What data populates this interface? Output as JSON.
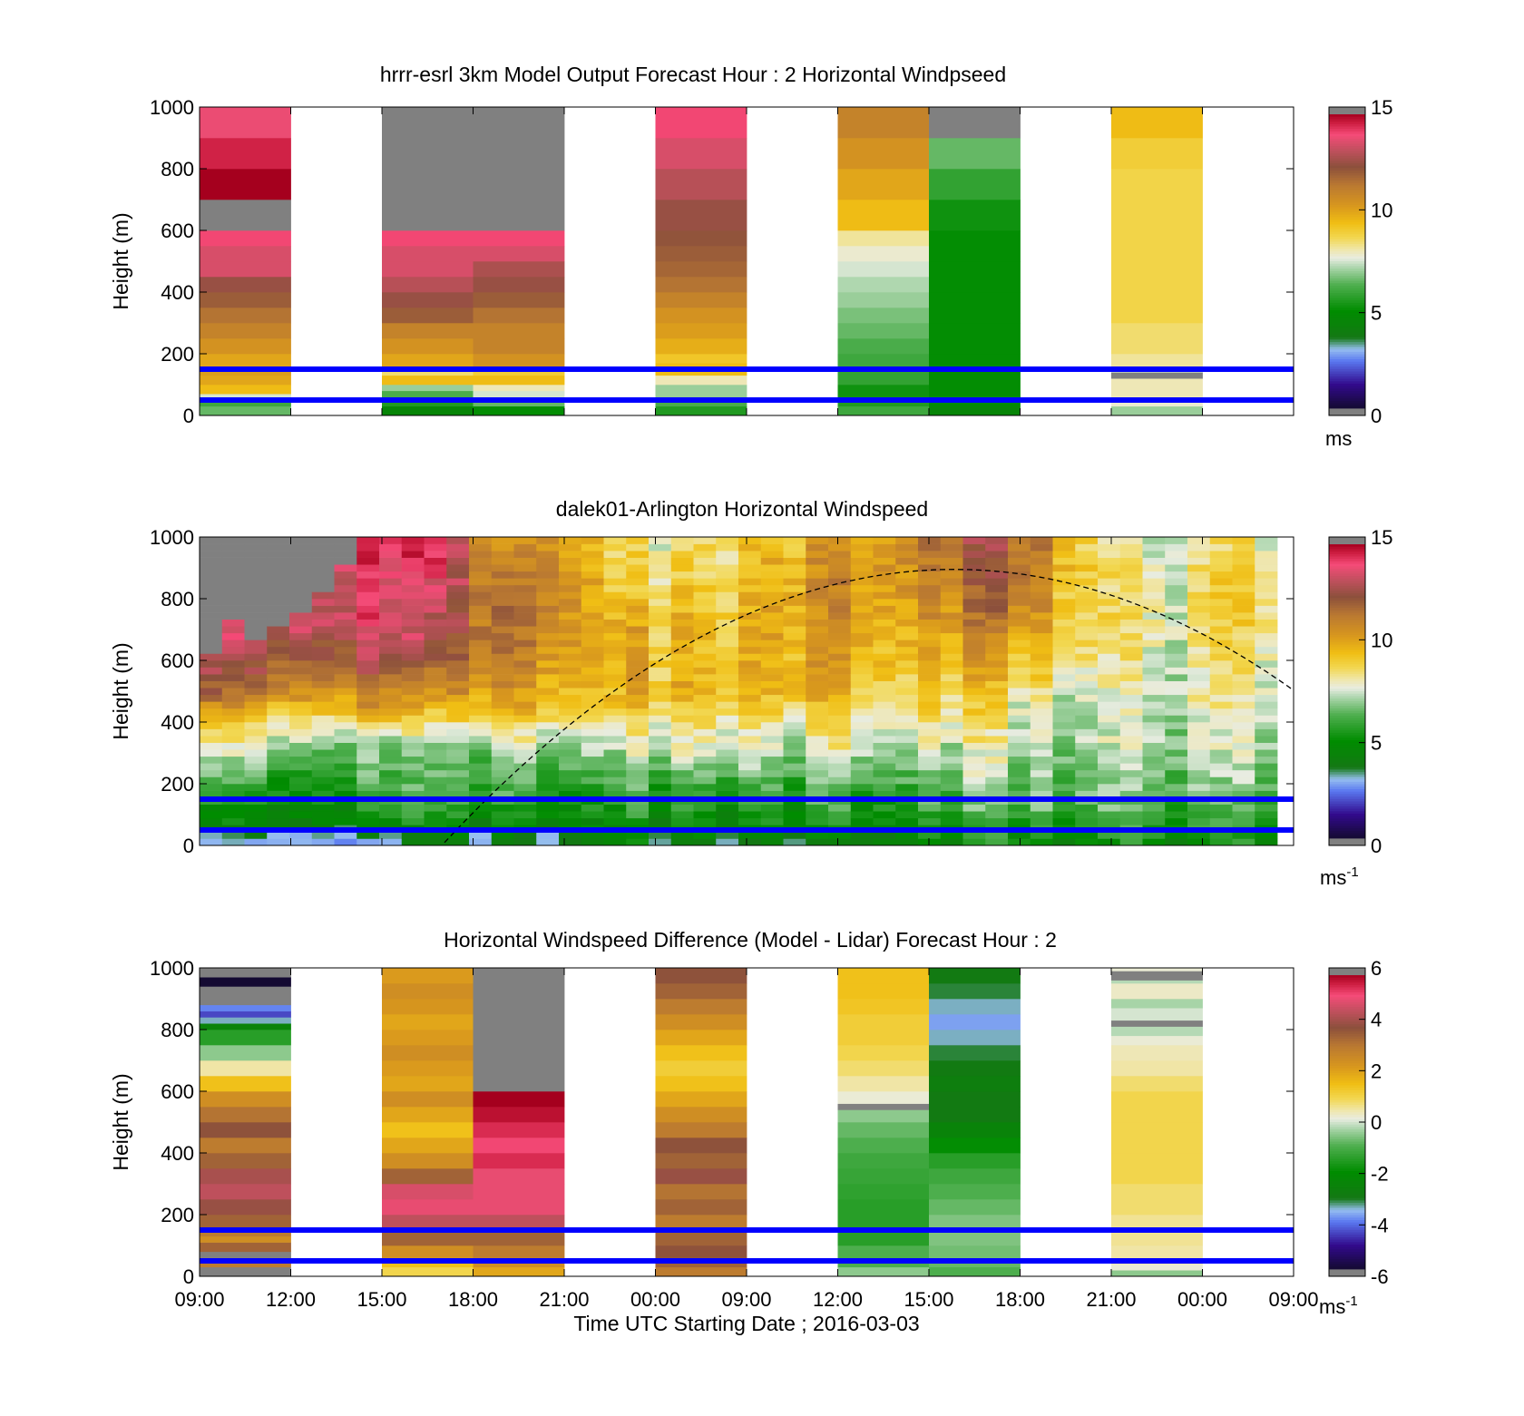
{
  "figure": {
    "xlabel": "Time UTC  Starting Date ; 2016-03-03",
    "xticks": [
      "09:00",
      "12:00",
      "15:00",
      "18:00",
      "21:00",
      "00:00",
      "09:00",
      "12:00",
      "15:00",
      "18:00",
      "21:00",
      "00:00",
      "09:00"
    ]
  },
  "colors": {
    "guide_line": "#0000ff",
    "sunpath_line": "#000000",
    "missing": "#808080"
  },
  "guide_lines_m": [
    150,
    50
  ],
  "chart_data": [
    {
      "type": "heatmap",
      "title": "hrrr-esrl 3km Model Output   Forecast Hour : 2 Horizontal Windpseed",
      "ylabel": "Height (m)",
      "ylim": [
        0,
        1000
      ],
      "yticks": [
        "0",
        "200",
        "400",
        "600",
        "800",
        "1000"
      ],
      "colorbar": {
        "range": [
          0,
          15
        ],
        "ticks": [
          "0",
          "5",
          "10",
          "15"
        ],
        "unit": "ms",
        "unit_sup": ""
      },
      "columns": [
        {
          "slot": 0,
          "height_edges": [
            0,
            30,
            50,
            70,
            100,
            130,
            160,
            200,
            250,
            300,
            350,
            400,
            450,
            500,
            550,
            600,
            700,
            800,
            900,
            1000
          ],
          "values": [
            6.5,
            6,
            7.5,
            9.5,
            10,
            10.2,
            10,
            10.5,
            11,
            11.5,
            12,
            12.5,
            13.5,
            13.5,
            14,
            null,
            15,
            14.5,
            13.8
          ]
        },
        {
          "slot": 2,
          "height_edges": [
            0,
            30,
            60,
            80,
            100,
            130,
            150,
            200,
            250,
            300,
            350,
            400,
            450,
            500,
            550,
            600,
            1000
          ],
          "values": [
            4.5,
            5.5,
            6.2,
            7,
            9.5,
            8.5,
            10,
            10.5,
            11,
            12,
            12.5,
            13,
            13.5,
            13.5,
            14,
            null
          ]
        },
        {
          "slot": 3,
          "height_edges": [
            0,
            30,
            50,
            80,
            100,
            130,
            150,
            200,
            250,
            300,
            350,
            400,
            450,
            500,
            550,
            600,
            1000
          ],
          "values": [
            5,
            6.5,
            7.5,
            8,
            9.5,
            9,
            10.5,
            11,
            11,
            11.5,
            12,
            12.5,
            12.8,
            13.5,
            14,
            null
          ]
        },
        {
          "slot": 5,
          "height_edges": [
            0,
            30,
            60,
            100,
            130,
            170,
            200,
            250,
            300,
            350,
            400,
            450,
            500,
            550,
            600,
            700,
            800,
            900,
            1000
          ],
          "values": [
            5.5,
            6.2,
            7,
            8,
            9.5,
            9.2,
            9.8,
            10.2,
            10.5,
            11,
            11.5,
            11.8,
            12,
            12.2,
            12.5,
            13,
            13.5,
            14
          ]
        },
        {
          "slot": 7,
          "height_edges": [
            0,
            30,
            60,
            100,
            150,
            200,
            250,
            300,
            350,
            400,
            450,
            500,
            550,
            600,
            700,
            800,
            900,
            1000
          ],
          "values": [
            6,
            5.5,
            5.2,
            5.8,
            6,
            6.2,
            6.5,
            6.7,
            7,
            7.2,
            7.5,
            7.8,
            8.2,
            9.5,
            10,
            10.5,
            11
          ]
        },
        {
          "slot": 8,
          "height_edges": [
            0,
            30,
            60,
            120,
            200,
            300,
            400,
            500,
            600,
            700,
            800,
            900,
            1000
          ],
          "values": [
            4.5,
            4.8,
            5,
            5,
            5,
            5,
            5,
            5,
            5.2,
            5.8,
            6.5,
            null
          ]
        },
        {
          "slot": 10,
          "height_edges": [
            0,
            30,
            60,
            120,
            140,
            160,
            200,
            300,
            400,
            500,
            600,
            700,
            800,
            900,
            1000
          ],
          "values": [
            7,
            7.8,
            8,
            null,
            7.5,
            8.2,
            8.5,
            8.8,
            8.8,
            8.8,
            8.8,
            8.8,
            9,
            9.5
          ]
        }
      ]
    },
    {
      "type": "heatmap",
      "title": "dalek01-Arlington  Horizontal Windspeed",
      "ylabel": "Height (m)",
      "ylim": [
        0,
        1000
      ],
      "yticks": [
        "0",
        "200",
        "400",
        "600",
        "800",
        "1000"
      ],
      "colorbar": {
        "range": [
          0,
          15
        ],
        "ticks": [
          "0",
          "5",
          "10",
          "15"
        ],
        "unit": "ms",
        "unit_sup": "-1"
      },
      "missing_above_m": [
        620,
        730,
        660,
        700,
        760,
        830,
        900,
        1000,
        1000,
        1000,
        1000,
        1000,
        1000,
        1000,
        1000,
        1000,
        1000,
        1000,
        1000,
        1000,
        1000,
        1000,
        1000,
        1000,
        1000,
        1000,
        1000,
        1000,
        1000,
        1000,
        1000,
        1000,
        1000,
        1000,
        1000,
        1000,
        1000,
        1000,
        1000,
        1000,
        1000,
        1000,
        1000,
        1000,
        1000,
        1000,
        1000,
        1000
      ],
      "profiles": [
        {
          "x": 0,
          "h": [
            0,
            60,
            150,
            250,
            400,
            500,
            600,
            800,
            1000
          ],
          "v": [
            2.5,
            4.5,
            5.5,
            7,
            9.5,
            12,
            13,
            14,
            14
          ]
        },
        {
          "x": 2,
          "h": [
            0,
            60,
            150,
            300,
            430,
            550,
            700,
            850,
            1000
          ],
          "v": [
            2.5,
            4.5,
            5.5,
            6.5,
            9.5,
            12,
            13.5,
            14,
            14
          ]
        },
        {
          "x": 3.5,
          "h": [
            0,
            60,
            150,
            320,
            450,
            600,
            750,
            1000
          ],
          "v": [
            2.5,
            4.5,
            5.5,
            6.5,
            10,
            12.5,
            13.5,
            14
          ]
        },
        {
          "x": 4.5,
          "h": [
            0,
            60,
            150,
            350,
            500,
            650,
            850,
            1000
          ],
          "v": [
            3,
            4.5,
            5.5,
            6.5,
            10,
            12,
            13,
            14
          ]
        },
        {
          "x": 5.5,
          "h": [
            0,
            60,
            150,
            300,
            380,
            500,
            650,
            800,
            1000
          ],
          "v": [
            3,
            4.5,
            5.5,
            7,
            8.5,
            10.5,
            11.5,
            11,
            10
          ]
        },
        {
          "x": 6.5,
          "h": [
            0,
            60,
            150,
            300,
            450,
            650,
            850,
            1000
          ],
          "v": [
            3,
            4.5,
            5.5,
            7,
            9.5,
            11,
            11.5,
            11
          ]
        },
        {
          "x": 8,
          "h": [
            0,
            60,
            150,
            300,
            500,
            700,
            850,
            1000
          ],
          "v": [
            4,
            4.8,
            5.5,
            7,
            9.5,
            9.5,
            8.5,
            8
          ]
        },
        {
          "x": 9.5,
          "h": [
            0,
            60,
            150,
            300,
            500,
            700,
            850,
            1000
          ],
          "v": [
            4,
            5,
            5.5,
            7.5,
            9.5,
            9.5,
            9,
            8.5
          ]
        },
        {
          "x": 11,
          "h": [
            0,
            60,
            150,
            300,
            500,
            700,
            850,
            1000
          ],
          "v": [
            3.5,
            4.8,
            5.5,
            7,
            9.5,
            10,
            10,
            9.5
          ]
        },
        {
          "x": 12,
          "h": [
            0,
            60,
            150,
            300,
            500,
            700,
            850,
            1000
          ],
          "v": [
            4,
            5,
            5.8,
            7.5,
            9.5,
            10.2,
            10.5,
            10.2
          ]
        },
        {
          "x": 13,
          "h": [
            0,
            60,
            150,
            300,
            450,
            600,
            750,
            900,
            1000
          ],
          "v": [
            4.5,
            5,
            6,
            7.5,
            9,
            9.8,
            10.5,
            11,
            11
          ]
        },
        {
          "x": 14,
          "h": [
            0,
            60,
            150,
            300,
            450,
            600,
            750,
            900,
            1000
          ],
          "v": [
            5,
            5.5,
            6.5,
            7.5,
            9,
            10,
            11,
            11.5,
            12
          ]
        },
        {
          "x": 15,
          "h": [
            0,
            60,
            150,
            300,
            450,
            600,
            750,
            900,
            1000
          ],
          "v": [
            5,
            5.5,
            6.5,
            7.2,
            8,
            9.5,
            11,
            12,
            12.5
          ]
        },
        {
          "x": 16,
          "h": [
            0,
            60,
            150,
            300,
            450,
            600,
            750,
            900,
            1000
          ],
          "v": [
            5,
            5.8,
            6.5,
            7,
            7.5,
            8.5,
            9.5,
            10,
            10
          ]
        },
        {
          "x": 17,
          "h": [
            0,
            60,
            150,
            300,
            450,
            600,
            750,
            900,
            1000
          ],
          "v": [
            5,
            5.8,
            6.5,
            7.2,
            7.5,
            8,
            8.5,
            8,
            7.5
          ]
        },
        {
          "x": 18,
          "h": [
            0,
            60,
            150,
            300,
            450,
            600,
            750,
            900,
            1000
          ],
          "v": [
            5,
            5.8,
            6.5,
            7.2,
            7.6,
            7.8,
            8,
            7.8,
            7.5
          ]
        },
        {
          "x": 19,
          "h": [
            0,
            60,
            150,
            300,
            450,
            600,
            750,
            900,
            1000
          ],
          "v": [
            5,
            5.8,
            6.5,
            7.5,
            8,
            8.5,
            9,
            9,
            8.5
          ]
        }
      ]
    },
    {
      "type": "heatmap",
      "title": "Horizontal Windspeed Difference (Model - Lidar) Forecast Hour : 2",
      "ylabel": "Height (m)",
      "ylim": [
        0,
        1000
      ],
      "yticks": [
        "0",
        "200",
        "400",
        "600",
        "800",
        "1000"
      ],
      "colorbar": {
        "range": [
          -6,
          6
        ],
        "ticks": [
          "-6",
          "-4",
          "-2",
          "0",
          "2",
          "4",
          "6"
        ],
        "unit": "ms",
        "unit_sup": "-1"
      },
      "columns": [
        {
          "slot": 0,
          "height_edges": [
            0,
            30,
            60,
            80,
            110,
            130,
            150,
            200,
            250,
            300,
            350,
            400,
            450,
            500,
            550,
            600,
            650,
            700,
            750,
            800,
            820,
            840,
            860,
            880,
            940,
            970,
            1000
          ],
          "values": [
            null,
            3,
            null,
            3.5,
            2.5,
            3,
            3.5,
            4,
            4.5,
            4.2,
            3.5,
            3,
            3.8,
            3.2,
            2.5,
            1.5,
            0.5,
            -0.5,
            -1.5,
            -2.5,
            -3.5,
            -4.5,
            -4,
            null,
            -6,
            null
          ]
        },
        {
          "slot": 2,
          "height_edges": [
            0,
            30,
            60,
            100,
            150,
            200,
            250,
            300,
            350,
            400,
            450,
            500,
            550,
            600,
            650,
            700,
            750,
            800,
            850,
            900,
            950,
            1000
          ],
          "values": [
            1,
            1.5,
            2.5,
            3.5,
            4.5,
            5,
            4.8,
            3.5,
            2.5,
            2,
            1.5,
            2,
            2.5,
            2,
            2.2,
            2.5,
            2.2,
            2,
            2.3,
            2.5,
            2.2
          ]
        },
        {
          "slot": 3,
          "height_edges": [
            0,
            30,
            60,
            100,
            150,
            200,
            250,
            300,
            350,
            400,
            450,
            500,
            550,
            600,
            1000
          ],
          "values": [
            2,
            2.5,
            3,
            3.5,
            4.5,
            5,
            5,
            5,
            5.5,
            5.2,
            5.5,
            5.8,
            6,
            null
          ]
        },
        {
          "slot": 5,
          "height_edges": [
            0,
            30,
            60,
            100,
            150,
            200,
            250,
            300,
            350,
            400,
            450,
            500,
            550,
            600,
            650,
            700,
            750,
            800,
            850,
            900,
            950,
            1000
          ],
          "values": [
            3,
            3.5,
            3.8,
            3.5,
            3,
            3.5,
            3.2,
            4,
            3.5,
            3.8,
            3,
            2.5,
            2,
            1.5,
            1.2,
            1.5,
            2,
            2.5,
            3,
            3.5,
            3.8
          ]
        },
        {
          "slot": 7,
          "height_edges": [
            0,
            30,
            100,
            150,
            200,
            250,
            300,
            350,
            400,
            450,
            500,
            540,
            560,
            600,
            650,
            700,
            750,
            800,
            850,
            900,
            950,
            1000
          ],
          "values": [
            -0.5,
            -1,
            -1.5,
            -1.5,
            -1.5,
            -1.4,
            -1.3,
            -1.2,
            -1,
            -0.8,
            -0.5,
            null,
            0.2,
            0.5,
            0.8,
            1,
            1.2,
            1.2,
            1.4,
            1.5,
            1.5
          ]
        },
        {
          "slot": 8,
          "height_edges": [
            0,
            30,
            60,
            100,
            150,
            200,
            250,
            300,
            350,
            400,
            450,
            500,
            550,
            600,
            650,
            700,
            750,
            800,
            850,
            900,
            950,
            1000
          ],
          "values": [
            -1,
            -0.8,
            -0.7,
            -0.6,
            -0.6,
            -0.8,
            -1,
            -1.2,
            -1.5,
            -2,
            -2.5,
            -3,
            -3,
            -2.8,
            -3,
            -3.2,
            -3.5,
            -3.8,
            -3.5,
            -3.2,
            -3
          ]
        },
        {
          "slot": 10,
          "height_edges": [
            0,
            20,
            40,
            100,
            200,
            300,
            400,
            500,
            600,
            650,
            700,
            750,
            780,
            810,
            830,
            870,
            900,
            950,
            960,
            990,
            1000
          ],
          "values": [
            -0.5,
            0.2,
            0.5,
            0.6,
            0.8,
            1,
            1,
            1,
            0.8,
            0.5,
            0.4,
            0.2,
            -0.2,
            null,
            0,
            -0.3,
            0.3,
            -0.2,
            null,
            0.2
          ]
        }
      ]
    }
  ]
}
